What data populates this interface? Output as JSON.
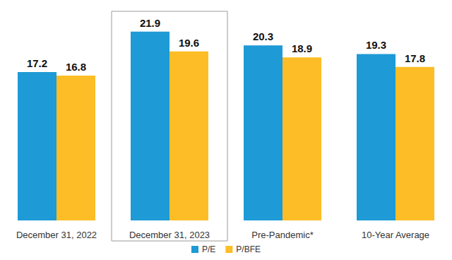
{
  "chart_data": {
    "type": "bar",
    "categories": [
      "December 31, 2022",
      "December 31, 2023",
      "Pre-Pandemic*",
      "10-Year Average"
    ],
    "series": [
      {
        "name": "P/E",
        "color": "#1E9AD6",
        "values": [
          17.2,
          21.9,
          20.3,
          19.3
        ]
      },
      {
        "name": "P/BFE",
        "color": "#FDBD26",
        "values": [
          16.8,
          19.6,
          18.9,
          17.8
        ]
      }
    ],
    "ylim": [
      0,
      24
    ],
    "grid": false,
    "legend": "bottom",
    "data_labels": true,
    "tick_labels": "x"
  }
}
